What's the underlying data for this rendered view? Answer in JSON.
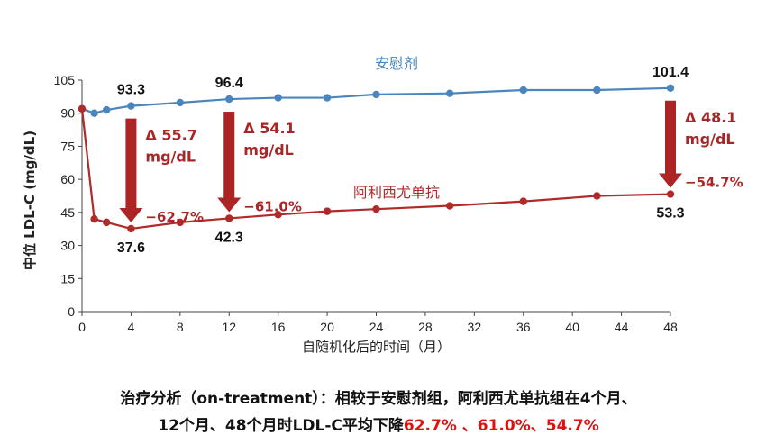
{
  "chart_data": {
    "type": "line",
    "ylabel": "中位 LDL-C (mg/dL)",
    "xlabel": "自随机化后的时间（月）",
    "x_ticks": [
      0,
      4,
      8,
      12,
      16,
      20,
      24,
      28,
      32,
      36,
      40,
      44,
      48
    ],
    "y_ticks": [
      0,
      15,
      30,
      45,
      60,
      75,
      90,
      105
    ],
    "xlim": [
      0,
      48
    ],
    "ylim": [
      0,
      105
    ],
    "grid": false,
    "series": [
      {
        "name": "安慰剂",
        "color": "#4a86bd",
        "x": [
          0,
          1,
          2,
          4,
          8,
          12,
          16,
          20,
          24,
          30,
          36,
          42,
          48
        ],
        "y": [
          92,
          90,
          91.5,
          93.3,
          94.8,
          96.4,
          97,
          97,
          98.5,
          99,
          100.5,
          100.5,
          101.4
        ]
      },
      {
        "name": "阿利西尤单抗",
        "color": "#b02a2a",
        "x": [
          0,
          1,
          2,
          4,
          8,
          12,
          16,
          20,
          24,
          30,
          36,
          42,
          48
        ],
        "y": [
          92,
          42,
          40.5,
          37.6,
          40.5,
          42.3,
          44,
          45.5,
          46.5,
          48,
          50,
          52.5,
          53.3
        ]
      }
    ],
    "value_labels": [
      {
        "series": 0,
        "x": 4,
        "text": "93.3",
        "pos": "above"
      },
      {
        "series": 0,
        "x": 12,
        "text": "96.4",
        "pos": "above"
      },
      {
        "series": 0,
        "x": 48,
        "text": "101.4",
        "pos": "above"
      },
      {
        "series": 1,
        "x": 4,
        "text": "37.6",
        "pos": "below"
      },
      {
        "series": 1,
        "x": 12,
        "text": "42.3",
        "pos": "below"
      },
      {
        "series": 1,
        "x": 48,
        "text": "53.3",
        "pos": "below"
      }
    ],
    "annotations": [
      {
        "x": 4,
        "delta": "Δ 55.7",
        "unit": "mg/dL",
        "pct": "−62.7%"
      },
      {
        "x": 12,
        "delta": "Δ 54.1",
        "unit": "mg/dL",
        "pct": "−61.0%"
      },
      {
        "x": 48,
        "delta": "Δ 48.1",
        "unit": "mg/dL",
        "pct": "−54.7%"
      }
    ]
  },
  "caption": {
    "line1": "治疗分析（on-treatment）：相较于安慰剂组，阿利西尤单抗组在4个月、",
    "line2_prefix": "12个月、48个月时LDL-C平均下降",
    "line2_highlight": "62.7% 、61.0%、54.7%"
  }
}
